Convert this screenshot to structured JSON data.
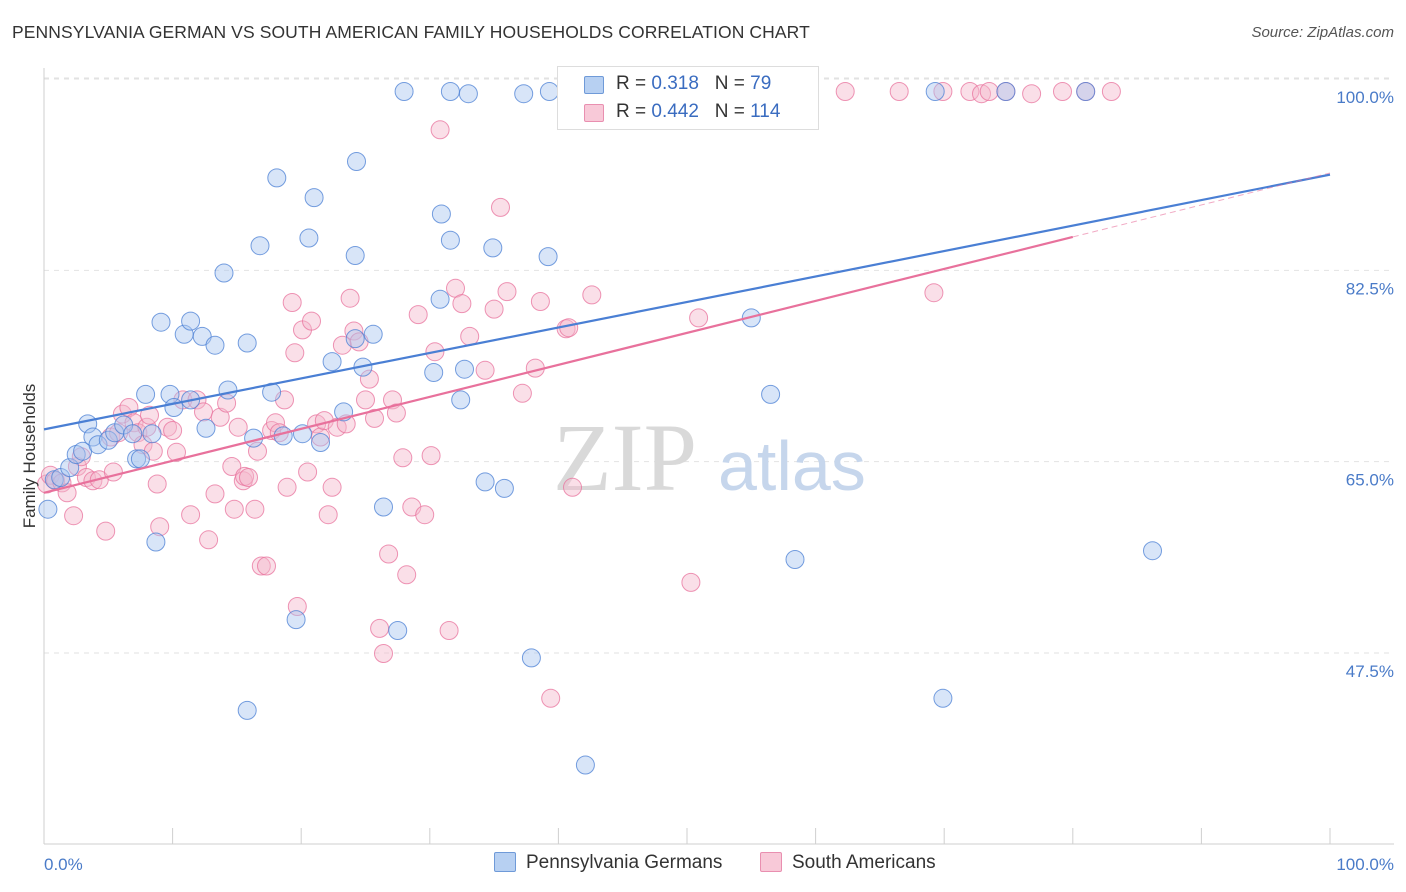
{
  "title": "PENNSYLVANIA GERMAN VS SOUTH AMERICAN FAMILY HOUSEHOLDS CORRELATION CHART",
  "source": "Source: ZipAtlas.com",
  "watermark": {
    "zip": "ZIP",
    "atlas": "atlas"
  },
  "legend": [
    {
      "r_label": "R = ",
      "r_value": "0.318",
      "n_label": "N = ",
      "n_value": "79"
    },
    {
      "r_label": "R = ",
      "r_value": "0.442",
      "n_label": "N = ",
      "n_value": "114"
    }
  ],
  "colors": {
    "blue": "#4a7fd4",
    "blue_fill": "#a9c6ef",
    "pink": "#e8719c",
    "pink_fill": "#f5b8cc",
    "grid": "#e2e2e2",
    "tick_label": "#4a7bc8"
  },
  "chart_data": {
    "type": "scatter",
    "title": "PENNSYLVANIA GERMAN VS SOUTH AMERICAN FAMILY HOUSEHOLDS CORRELATION CHART",
    "xlabel": "",
    "ylabel": "Family Households",
    "xlim": [
      0,
      100
    ],
    "ylim": [
      32,
      103
    ],
    "x_tick_labels": [
      "0.0%",
      "100.0%"
    ],
    "y_ticks": [
      47.5,
      65.0,
      82.5,
      100.0
    ],
    "y_tick_labels": [
      "47.5%",
      "65.0%",
      "82.5%",
      "100.0%"
    ],
    "grid": true,
    "legend_position": "top-center",
    "series": [
      {
        "name": "Pennsylvania Germans",
        "color": "#4a7fd4",
        "R": 0.318,
        "N": 79,
        "trend": {
          "x": [
            0,
            100
          ],
          "y": [
            69.6,
            92.9
          ]
        },
        "points": [
          [
            0.3,
            62.3
          ],
          [
            0.8,
            65.0
          ],
          [
            1.3,
            65.2
          ],
          [
            2.0,
            66.1
          ],
          [
            2.5,
            67.3
          ],
          [
            3.0,
            67.6
          ],
          [
            3.4,
            70.1
          ],
          [
            3.8,
            68.9
          ],
          [
            4.2,
            68.2
          ],
          [
            5.0,
            68.6
          ],
          [
            5.5,
            69.3
          ],
          [
            6.2,
            70.0
          ],
          [
            6.9,
            69.2
          ],
          [
            7.2,
            66.9
          ],
          [
            7.5,
            66.9
          ],
          [
            7.9,
            72.8
          ],
          [
            8.4,
            69.2
          ],
          [
            8.7,
            59.3
          ],
          [
            9.1,
            79.4
          ],
          [
            9.8,
            72.8
          ],
          [
            10.1,
            71.6
          ],
          [
            10.9,
            78.3
          ],
          [
            11.4,
            72.3
          ],
          [
            11.4,
            79.5
          ],
          [
            12.3,
            78.1
          ],
          [
            12.6,
            69.7
          ],
          [
            13.3,
            77.3
          ],
          [
            14.0,
            83.9
          ],
          [
            14.3,
            73.2
          ],
          [
            15.8,
            77.5
          ],
          [
            15.8,
            43.9
          ],
          [
            16.3,
            68.8
          ],
          [
            16.8,
            86.4
          ],
          [
            17.7,
            73.0
          ],
          [
            18.1,
            92.6
          ],
          [
            18.6,
            69.0
          ],
          [
            19.6,
            52.2
          ],
          [
            20.1,
            69.2
          ],
          [
            20.6,
            87.1
          ],
          [
            21.0,
            90.8
          ],
          [
            21.5,
            68.4
          ],
          [
            22.4,
            75.8
          ],
          [
            23.3,
            71.2
          ],
          [
            24.2,
            85.5
          ],
          [
            24.2,
            77.9
          ],
          [
            24.3,
            94.1
          ],
          [
            24.8,
            75.3
          ],
          [
            25.6,
            78.3
          ],
          [
            26.4,
            62.5
          ],
          [
            27.5,
            51.2
          ],
          [
            28.0,
            100.5
          ],
          [
            30.3,
            74.8
          ],
          [
            30.8,
            81.5
          ],
          [
            30.9,
            89.3
          ],
          [
            31.6,
            100.5
          ],
          [
            31.6,
            86.9
          ],
          [
            32.4,
            72.3
          ],
          [
            32.7,
            75.1
          ],
          [
            33.0,
            100.3
          ],
          [
            34.3,
            64.8
          ],
          [
            35.8,
            64.2
          ],
          [
            34.9,
            86.2
          ],
          [
            37.3,
            100.3
          ],
          [
            37.9,
            48.7
          ],
          [
            39.2,
            85.4
          ],
          [
            39.3,
            100.5
          ],
          [
            41.2,
            100.5
          ],
          [
            42.1,
            38.9
          ],
          [
            47.3,
            100.5
          ],
          [
            54.2,
            100.5
          ],
          [
            55.0,
            79.8
          ],
          [
            55.5,
            100.5
          ],
          [
            56.5,
            72.8
          ],
          [
            58.4,
            57.7
          ],
          [
            69.3,
            100.5
          ],
          [
            69.9,
            45.0
          ],
          [
            74.8,
            100.5
          ],
          [
            81.0,
            100.5
          ],
          [
            86.2,
            58.5
          ]
        ]
      },
      {
        "name": "South Americans",
        "color": "#e8719c",
        "R": 0.442,
        "N": 114,
        "trend": {
          "x": [
            0,
            80
          ],
          "y": [
            63.8,
            87.2
          ]
        },
        "points": [
          [
            0.2,
            64.6
          ],
          [
            0.5,
            65.4
          ],
          [
            0.9,
            64.9
          ],
          [
            1.4,
            64.7
          ],
          [
            1.8,
            63.8
          ],
          [
            2.3,
            61.7
          ],
          [
            2.6,
            66.2
          ],
          [
            2.9,
            67.1
          ],
          [
            3.3,
            65.2
          ],
          [
            3.8,
            64.9
          ],
          [
            4.3,
            65.0
          ],
          [
            4.8,
            60.3
          ],
          [
            5.2,
            68.9
          ],
          [
            5.4,
            65.7
          ],
          [
            5.8,
            69.3
          ],
          [
            6.1,
            71.0
          ],
          [
            6.6,
            71.6
          ],
          [
            7.0,
            70.2
          ],
          [
            7.3,
            69.3
          ],
          [
            7.7,
            68.2
          ],
          [
            8.0,
            69.8
          ],
          [
            8.2,
            70.9
          ],
          [
            8.5,
            67.6
          ],
          [
            8.8,
            64.6
          ],
          [
            9.0,
            60.7
          ],
          [
            9.6,
            69.8
          ],
          [
            10.0,
            69.5
          ],
          [
            10.3,
            67.5
          ],
          [
            10.8,
            72.3
          ],
          [
            11.4,
            61.8
          ],
          [
            11.9,
            72.3
          ],
          [
            12.4,
            71.2
          ],
          [
            12.8,
            59.5
          ],
          [
            13.3,
            63.7
          ],
          [
            13.7,
            70.7
          ],
          [
            14.2,
            72.0
          ],
          [
            14.6,
            66.2
          ],
          [
            14.8,
            62.3
          ],
          [
            15.1,
            69.8
          ],
          [
            15.5,
            64.9
          ],
          [
            15.6,
            65.3
          ],
          [
            15.9,
            65.2
          ],
          [
            16.4,
            62.3
          ],
          [
            16.6,
            67.6
          ],
          [
            16.9,
            57.1
          ],
          [
            17.3,
            57.1
          ],
          [
            17.7,
            69.5
          ],
          [
            18.0,
            70.2
          ],
          [
            18.3,
            69.3
          ],
          [
            18.7,
            72.3
          ],
          [
            18.9,
            64.3
          ],
          [
            19.3,
            81.2
          ],
          [
            19.5,
            76.6
          ],
          [
            19.7,
            53.4
          ],
          [
            20.1,
            78.7
          ],
          [
            20.5,
            65.7
          ],
          [
            20.8,
            79.5
          ],
          [
            21.2,
            70.1
          ],
          [
            21.5,
            68.9
          ],
          [
            21.8,
            70.4
          ],
          [
            22.1,
            61.8
          ],
          [
            22.4,
            64.3
          ],
          [
            22.8,
            69.8
          ],
          [
            23.2,
            77.3
          ],
          [
            23.5,
            70.1
          ],
          [
            23.8,
            81.6
          ],
          [
            24.1,
            78.6
          ],
          [
            24.5,
            77.6
          ],
          [
            25.0,
            72.3
          ],
          [
            25.3,
            74.2
          ],
          [
            25.7,
            70.6
          ],
          [
            26.1,
            51.4
          ],
          [
            26.4,
            49.1
          ],
          [
            26.8,
            58.2
          ],
          [
            27.1,
            72.3
          ],
          [
            27.4,
            71.1
          ],
          [
            27.9,
            67.0
          ],
          [
            28.2,
            56.3
          ],
          [
            28.6,
            62.5
          ],
          [
            29.1,
            80.1
          ],
          [
            29.6,
            61.8
          ],
          [
            30.1,
            67.2
          ],
          [
            30.4,
            76.7
          ],
          [
            30.8,
            97.0
          ],
          [
            31.5,
            51.2
          ],
          [
            32.0,
            82.5
          ],
          [
            32.5,
            81.1
          ],
          [
            33.1,
            78.1
          ],
          [
            34.3,
            75.0
          ],
          [
            35.0,
            80.6
          ],
          [
            35.5,
            89.9
          ],
          [
            36.0,
            82.2
          ],
          [
            37.2,
            72.9
          ],
          [
            38.2,
            75.2
          ],
          [
            38.6,
            81.3
          ],
          [
            39.4,
            45.0
          ],
          [
            40.6,
            78.8
          ],
          [
            40.8,
            78.9
          ],
          [
            41.1,
            64.3
          ],
          [
            42.6,
            81.9
          ],
          [
            50.3,
            55.6
          ],
          [
            50.9,
            79.8
          ],
          [
            62.3,
            100.5
          ],
          [
            66.5,
            100.5
          ],
          [
            69.2,
            82.1
          ],
          [
            69.9,
            100.5
          ],
          [
            72.0,
            100.5
          ],
          [
            72.9,
            100.3
          ],
          [
            73.5,
            100.5
          ],
          [
            74.8,
            100.5
          ],
          [
            76.8,
            100.3
          ],
          [
            79.2,
            100.5
          ],
          [
            81.0,
            100.5
          ],
          [
            83.0,
            100.5
          ]
        ]
      }
    ]
  }
}
